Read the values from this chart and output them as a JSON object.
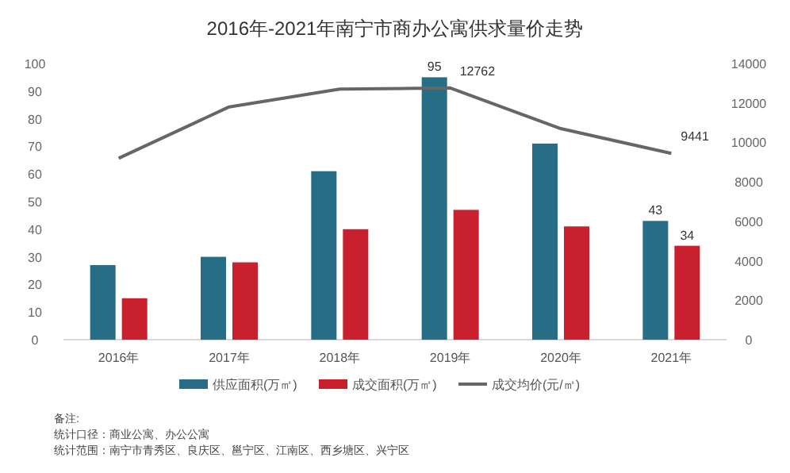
{
  "chart_data": {
    "type": "bar",
    "title": "2016年-2021年南宁市商办公寓供求量价走势",
    "categories": [
      "2016年",
      "2017年",
      "2018年",
      "2019年",
      "2020年",
      "2021年"
    ],
    "series": [
      {
        "name": "供应面积(万㎡)",
        "color": "#276d85",
        "values": [
          27,
          30,
          61,
          95,
          71,
          43
        ],
        "value_labels": [
          null,
          null,
          null,
          "95",
          null,
          "43"
        ]
      },
      {
        "name": "成交面积(万㎡)",
        "color": "#c8202f",
        "values": [
          15,
          28,
          40,
          47,
          41,
          34
        ],
        "value_labels": [
          null,
          null,
          null,
          null,
          null,
          "34"
        ]
      },
      {
        "name": "成交均价(元/㎡)",
        "type": "line",
        "axis": "y2",
        "color": "#666666",
        "values": [
          9200,
          11800,
          12700,
          12762,
          10700,
          9441
        ],
        "value_labels": [
          null,
          null,
          null,
          "12762",
          null,
          "9441"
        ]
      }
    ],
    "ylim": [
      0,
      100
    ],
    "yticks": [
      0,
      10,
      20,
      30,
      40,
      50,
      60,
      70,
      80,
      90,
      100
    ],
    "y2lim": [
      0,
      14000
    ],
    "y2ticks": [
      0,
      2000,
      4000,
      6000,
      8000,
      10000,
      12000,
      14000
    ],
    "grid": false,
    "legend": "bottom",
    "annotations": [
      "备注:",
      "统计口径：商业公寓、办公公寓",
      "统计范围：南宁市青秀区、良庆区、邕宁区、江南区、西乡塘区、兴宁区"
    ]
  }
}
